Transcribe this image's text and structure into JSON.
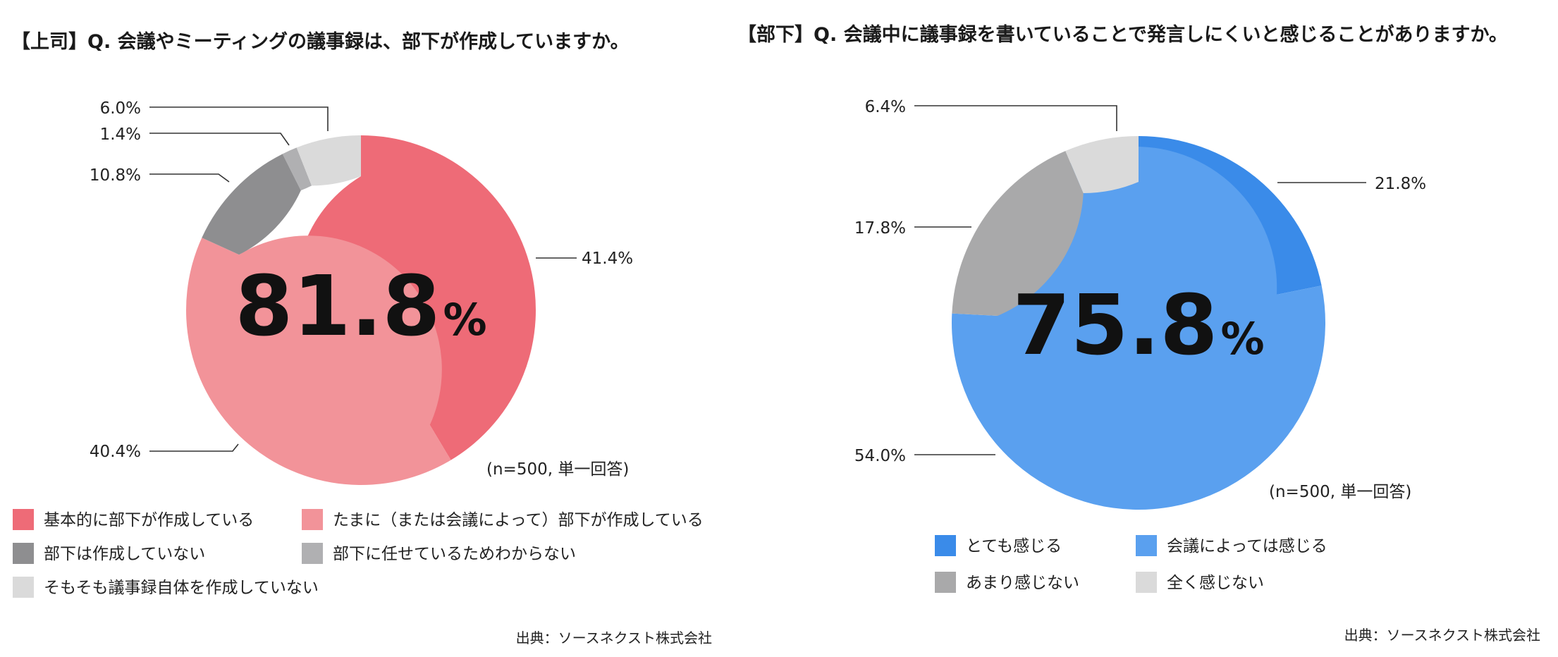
{
  "chart_data": [
    {
      "type": "pie",
      "title": "【上司】Q. 会議やミーティングの議事録は、部下が作成していますか。",
      "center_value": "81.8",
      "center_unit": "%",
      "note": "(n=500, 単一回答)",
      "source": "出典：ソースネクスト株式会社",
      "legend_placement": "bottom",
      "categories": [
        "基本的に部下が作成している",
        "たまに（または会議によって）部下が作成している",
        "部下は作成していない",
        "部下に任せているためわからない",
        "そもそも議事録自体を作成していない"
      ],
      "values": [
        41.4,
        40.4,
        10.8,
        1.4,
        6.0
      ],
      "labels": [
        "41.4%",
        "40.4%",
        "10.8%",
        "1.4%",
        "6.0%"
      ],
      "colors": [
        "#ee6b77",
        "#f29399",
        "#8e8e90",
        "#b0b0b2",
        "#dadada"
      ]
    },
    {
      "type": "pie",
      "title": "【部下】Q. 会議中に議事録を書いていることで発言しにくいと感じることがありますか。",
      "center_value": "75.8",
      "center_unit": "%",
      "note": "(n=500, 単一回答)",
      "source": "出典：ソースネクスト株式会社",
      "legend_placement": "bottom",
      "categories": [
        "とても感じる",
        "会議によっては感じる",
        "あまり感じない",
        "全く感じない"
      ],
      "values": [
        21.8,
        54.0,
        17.8,
        6.4
      ],
      "labels": [
        "21.8%",
        "54.0%",
        "17.8%",
        "6.4%"
      ],
      "colors": [
        "#3a8be9",
        "#5aa0ef",
        "#a9a9aa",
        "#dadada"
      ]
    }
  ]
}
